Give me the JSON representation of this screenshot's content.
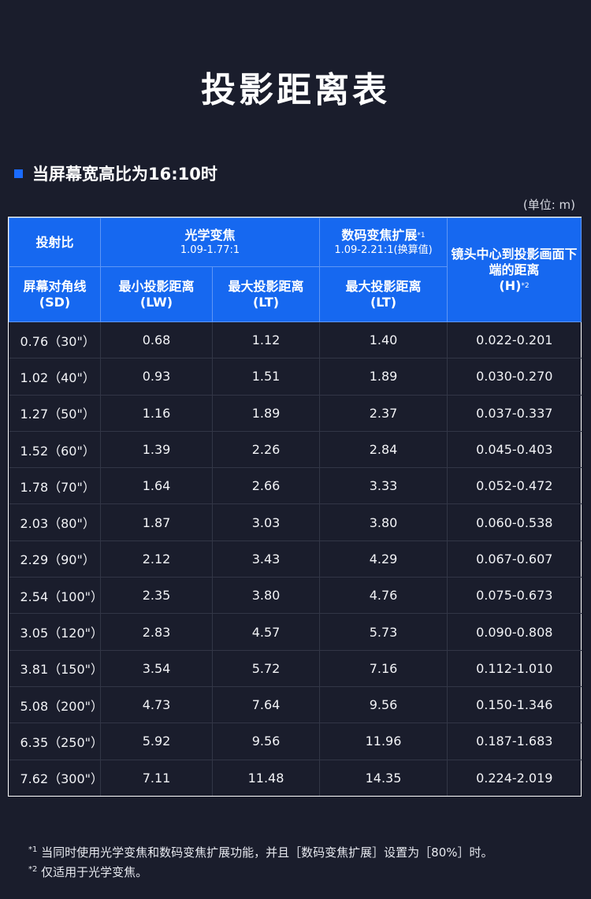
{
  "page_title": "投影距离表",
  "section_heading": "当屏幕宽高比为16:10时",
  "unit_note": "(单位: m)",
  "table": {
    "header_row1": {
      "throw_ratio": "投射比",
      "optical_zoom": "光学变焦",
      "optical_zoom_range": "1.09-1.77:1",
      "digital_zoom": "数码变焦扩展",
      "digital_zoom_mark": "*1",
      "digital_zoom_range": "1.09-2.21:1(换算值)",
      "lens_offset": "镜头中心到投影画面下端的距离",
      "lens_offset_unit": "(H)",
      "lens_offset_mark": "*2"
    },
    "header_row2": {
      "screen_diag": "屏幕对角线",
      "screen_diag_unit": "(SD)",
      "min_dist": "最小投影距离",
      "min_dist_unit": "(LW)",
      "max_dist": "最大投影距离",
      "max_dist_unit": "(LT)",
      "max_dist_digital": "最大投影距离",
      "max_dist_digital_unit": "(LT)"
    },
    "rows": [
      [
        "0.76（30\"）",
        "0.68",
        "1.12",
        "1.40",
        "0.022-0.201"
      ],
      [
        "1.02（40\"）",
        "0.93",
        "1.51",
        "1.89",
        "0.030-0.270"
      ],
      [
        "1.27（50\"）",
        "1.16",
        "1.89",
        "2.37",
        "0.037-0.337"
      ],
      [
        "1.52（60\"）",
        "1.39",
        "2.26",
        "2.84",
        "0.045-0.403"
      ],
      [
        "1.78（70\"）",
        "1.64",
        "2.66",
        "3.33",
        "0.052-0.472"
      ],
      [
        "2.03（80\"）",
        "1.87",
        "3.03",
        "3.80",
        "0.060-0.538"
      ],
      [
        "2.29（90\"）",
        "2.12",
        "3.43",
        "4.29",
        "0.067-0.607"
      ],
      [
        "2.54（100\"）",
        "2.35",
        "3.80",
        "4.76",
        "0.075-0.673"
      ],
      [
        "3.05（120\"）",
        "2.83",
        "4.57",
        "5.73",
        "0.090-0.808"
      ],
      [
        "3.81（150\"）",
        "3.54",
        "5.72",
        "7.16",
        "0.112-1.010"
      ],
      [
        "5.08（200\"）",
        "4.73",
        "7.64",
        "9.56",
        "0.150-1.346"
      ],
      [
        "6.35（250\"）",
        "5.92",
        "9.56",
        "11.96",
        "0.187-1.683"
      ],
      [
        "7.62（300\"）",
        "7.11",
        "11.48",
        "14.35",
        "0.224-2.019"
      ]
    ]
  },
  "footnotes": [
    {
      "mark": "*1",
      "text": " 当同时使用光学变焦和数码变焦扩展功能，并且［数码变焦扩展］设置为［80%］时。"
    },
    {
      "mark": "*2",
      "text": " 仅适用于光学变焦。"
    }
  ],
  "colors": {
    "background": "#1a1d2c",
    "header_blue": "#1668f0",
    "accent_square": "#1a6bff"
  }
}
